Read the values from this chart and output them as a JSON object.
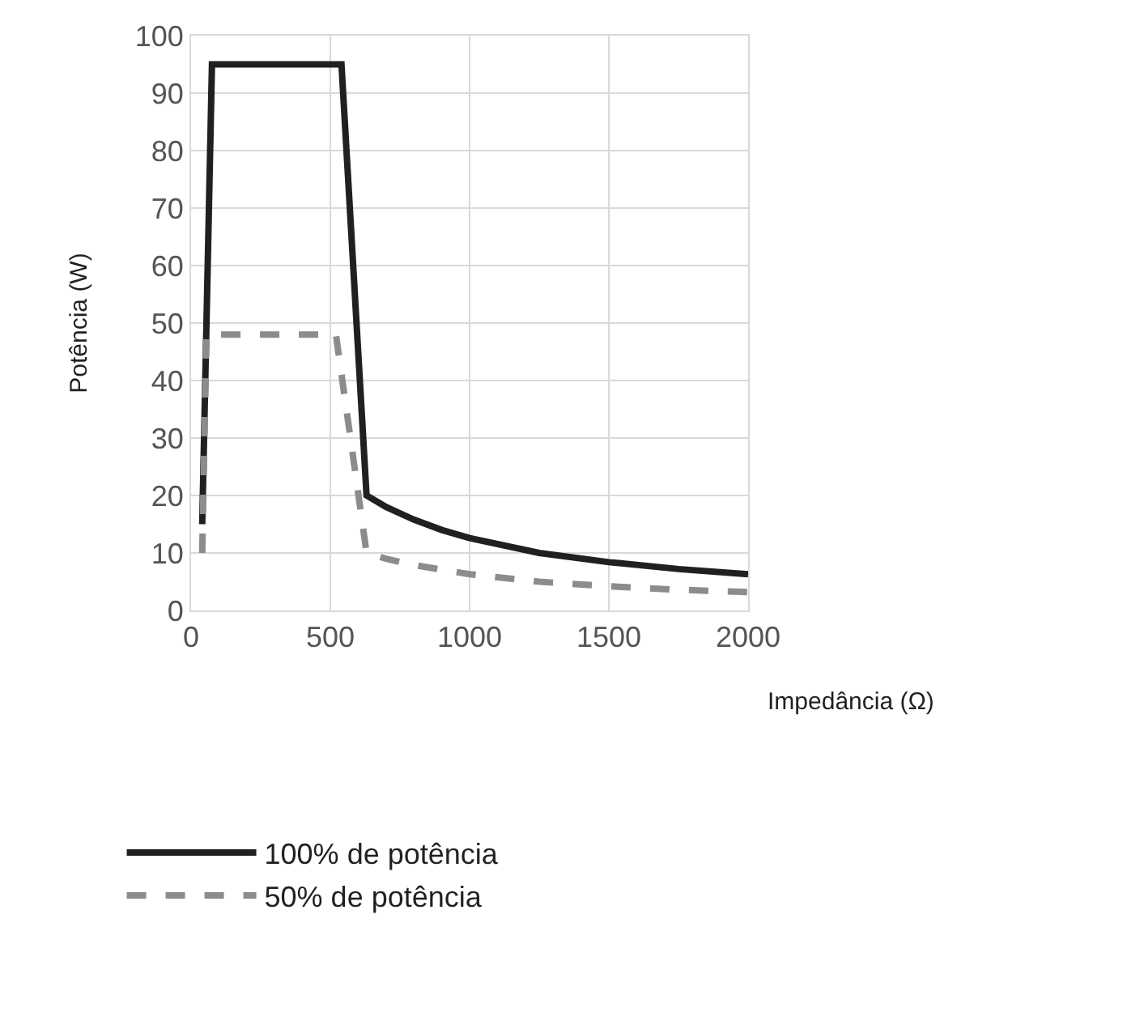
{
  "chart_data": {
    "type": "line",
    "xlabel": "Impedância (Ω)",
    "ylabel": "Potência (W)",
    "xlim": [
      0,
      2000
    ],
    "xticks": [
      0,
      500,
      1000,
      1500,
      2000
    ],
    "ylim": [
      0,
      100
    ],
    "yticks": [
      0,
      10,
      20,
      30,
      40,
      50,
      60,
      70,
      80,
      90,
      100
    ],
    "grid": true,
    "legend": "bottom",
    "series": [
      {
        "name": "100% de potência",
        "color": "#231f20",
        "line_style": "solid",
        "x": [
          40,
          75,
          540,
          630,
          700,
          800,
          900,
          1000,
          1250,
          1500,
          1750,
          2000
        ],
        "values": [
          15,
          95,
          95,
          20,
          18,
          15.8,
          14,
          12.6,
          10,
          8.4,
          7.2,
          6.3
        ]
      },
      {
        "name": "50% de potência",
        "color": "#8c8c8c",
        "line_style": "dashed",
        "x": [
          40,
          55,
          520,
          630,
          700,
          800,
          1000,
          1250,
          1500,
          1750,
          2000
        ],
        "values": [
          10,
          48,
          48,
          10,
          9,
          7.9,
          6.3,
          5,
          4.2,
          3.6,
          3.2
        ]
      }
    ]
  }
}
